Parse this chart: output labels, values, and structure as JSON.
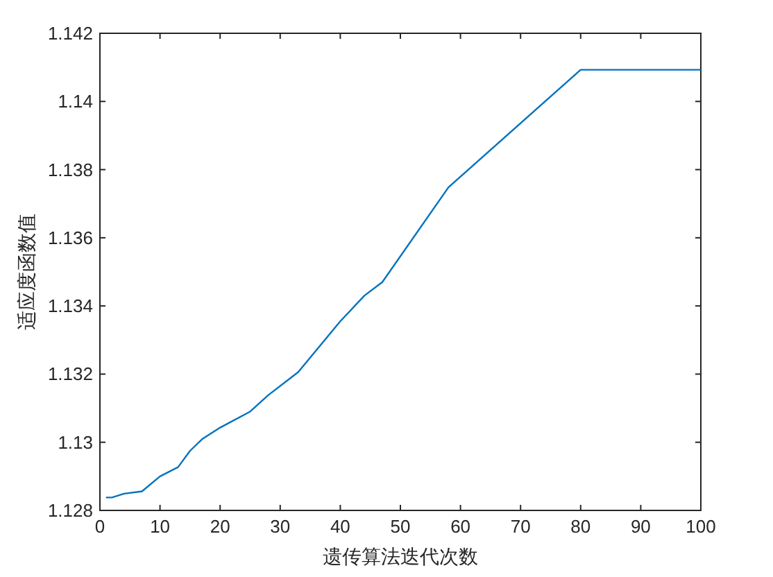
{
  "chart_data": {
    "type": "line",
    "xlabel": "遗传算法迭代次数",
    "ylabel": "适应度函数值",
    "x": [
      1,
      2,
      4,
      7,
      10,
      13,
      15,
      17,
      20,
      25,
      28,
      33,
      40,
      44,
      47,
      58,
      80,
      100
    ],
    "series": [
      {
        "color": "#0072bd",
        "values": [
          1.12838,
          1.12838,
          1.12849,
          1.12856,
          1.129,
          1.12927,
          1.12975,
          1.13009,
          1.13043,
          1.1309,
          1.13138,
          1.13206,
          1.13355,
          1.1343,
          1.1347,
          1.13748,
          1.14093,
          1.14093
        ]
      }
    ],
    "xlim": [
      0,
      100
    ],
    "ylim": [
      1.128,
      1.142
    ],
    "xticks": [
      0,
      10,
      20,
      30,
      40,
      50,
      60,
      70,
      80,
      90,
      100
    ],
    "yticks": [
      {
        "value": 1.128,
        "label": "1.128"
      },
      {
        "value": 1.13,
        "label": "1.13"
      },
      {
        "value": 1.132,
        "label": "1.132"
      },
      {
        "value": 1.134,
        "label": "1.134"
      },
      {
        "value": 1.136,
        "label": "1.136"
      },
      {
        "value": 1.138,
        "label": "1.138"
      },
      {
        "value": 1.14,
        "label": "1.14"
      },
      {
        "value": 1.142,
        "label": "1.142"
      }
    ],
    "grid": false,
    "marker": "none",
    "line_style": "solid"
  }
}
